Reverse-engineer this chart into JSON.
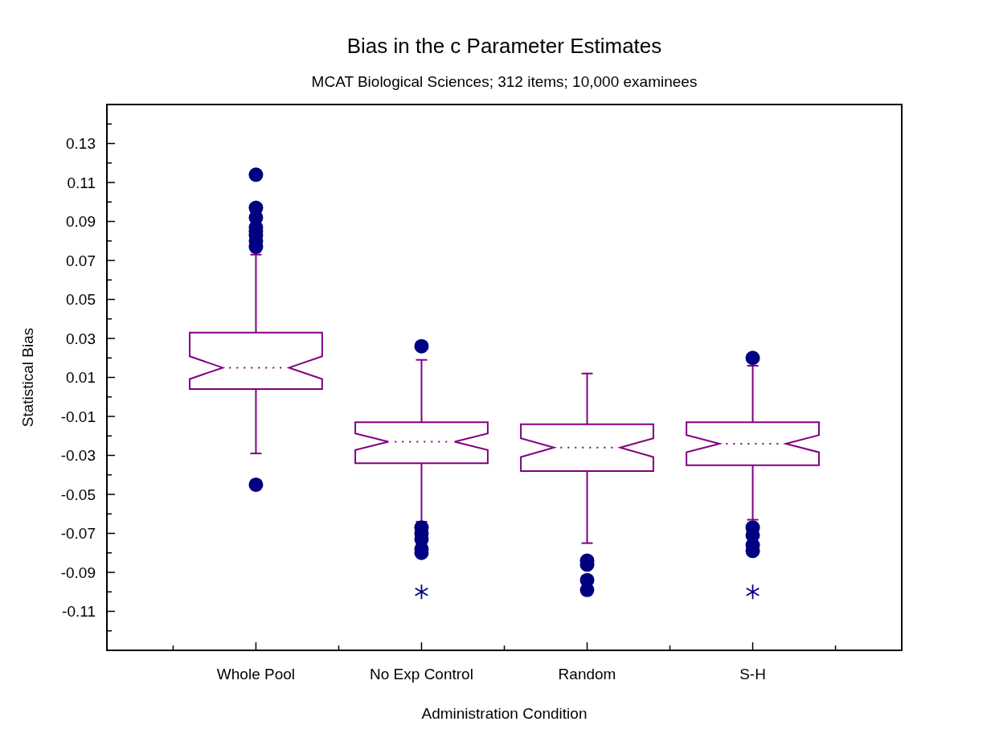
{
  "chart_data": {
    "type": "box",
    "title": "Bias in the c Parameter Estimates",
    "subtitle": "MCAT Biological Sciences; 312 items; 10,000 examinees",
    "xlabel": "Administration Condition",
    "ylabel": "Statistical Bias",
    "categories": [
      "Whole Pool",
      "No Exp Control",
      "Random",
      "S-H"
    ],
    "ylim": [
      -0.13,
      0.15
    ],
    "yticks": [
      {
        "value": -0.12,
        "label": null
      },
      -0.11,
      {
        "value": -0.1,
        "label": null
      },
      -0.09,
      {
        "value": -0.08,
        "label": null
      },
      -0.07,
      {
        "value": -0.06,
        "label": null
      },
      -0.05,
      {
        "value": -0.04,
        "label": null
      },
      -0.03,
      {
        "value": -0.02,
        "label": null
      },
      -0.01,
      {
        "value": 0,
        "label": null
      },
      0.01,
      {
        "value": 0.02,
        "label": null
      },
      0.03,
      {
        "value": 0.04,
        "label": null
      },
      0.05,
      {
        "value": 0.06,
        "label": null
      },
      0.07,
      {
        "value": 0.08,
        "label": null
      },
      0.09,
      {
        "value": 0.1,
        "label": null
      },
      0.11,
      {
        "value": 0.12,
        "label": null
      },
      0.13,
      {
        "value": 0.14,
        "label": null
      }
    ],
    "grid": false,
    "series": [
      {
        "color": "#800080",
        "boxes": [
          {
            "low": -0.029,
            "q1": 0.004,
            "median": 0.015,
            "q3": 0.033,
            "high": 0.073,
            "outliers": [
              0.114,
              0.097,
              0.092,
              0.087,
              0.085,
              0.083,
              0.08,
              0.077,
              -0.045
            ]
          },
          {
            "low": -0.064,
            "q1": -0.034,
            "median": -0.023,
            "q3": -0.013,
            "high": 0.019,
            "outliers": [
              0.026,
              -0.067,
              -0.07,
              -0.073,
              -0.078,
              -0.08
            ]
          },
          {
            "low": -0.075,
            "q1": -0.038,
            "median": -0.026,
            "q3": -0.014,
            "high": 0.012,
            "outliers": [
              -0.084,
              -0.086,
              -0.094,
              -0.099
            ]
          },
          {
            "low": -0.063,
            "q1": -0.035,
            "median": -0.024,
            "q3": -0.013,
            "high": 0.016,
            "outliers": [
              0.02,
              -0.067,
              -0.071,
              -0.076,
              -0.079
            ]
          }
        ]
      },
      {
        "type": "scatter",
        "color": "#000080",
        "marker": "cross",
        "x": [
          "No Exp Control",
          "S-H"
        ],
        "values": [
          -0.1,
          -0.1
        ]
      }
    ]
  }
}
